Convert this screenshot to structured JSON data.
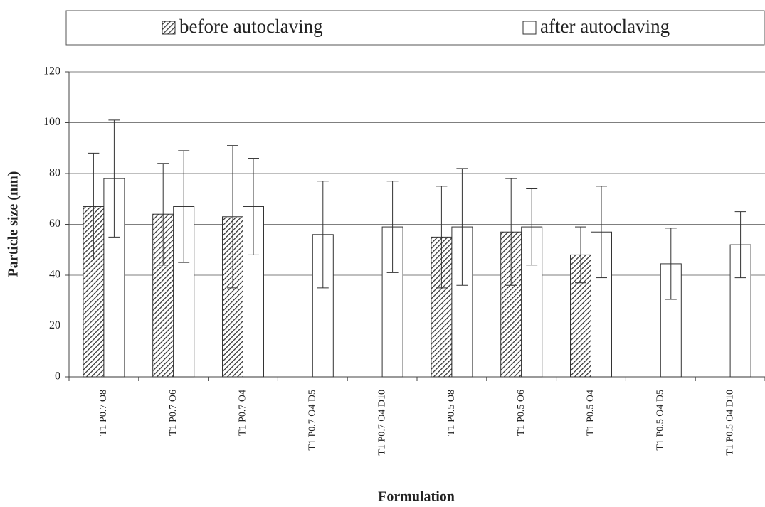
{
  "chart_data": {
    "type": "bar",
    "x_label": "Formulation",
    "y_label": "Particle size (nm)",
    "categories": [
      "T1 P0.7 O8",
      "T1 P0.7 O6",
      "T1 P0.7 O4",
      "T1 P0.7 O4 D5",
      "T1 P0.7 O4 D10",
      "T1 P0.5 O8",
      "T1 P0.5 O6",
      "T1 P0.5 O4",
      "T1 P0.5 O4 D5",
      "T1 P0.5 O4 D10"
    ],
    "series": [
      {
        "name": "before autoclaving",
        "color": "#333333",
        "pattern": "hatched",
        "values": [
          67,
          64,
          63,
          null,
          null,
          55,
          57,
          48,
          null,
          null
        ],
        "errors": [
          21,
          20,
          28,
          null,
          null,
          20,
          21,
          11,
          null,
          null
        ]
      },
      {
        "name": "after autoclaving",
        "color": "#333333",
        "pattern": "solid",
        "values": [
          78,
          67,
          67,
          56,
          59,
          59,
          59,
          57,
          44.5,
          52
        ],
        "errors": [
          23,
          22,
          19,
          21,
          18,
          23,
          15,
          18,
          14,
          13
        ]
      }
    ],
    "ylim": [
      0,
      120
    ],
    "yticks": [
      0,
      20,
      40,
      60,
      80,
      100,
      120
    ],
    "grid": true
  }
}
